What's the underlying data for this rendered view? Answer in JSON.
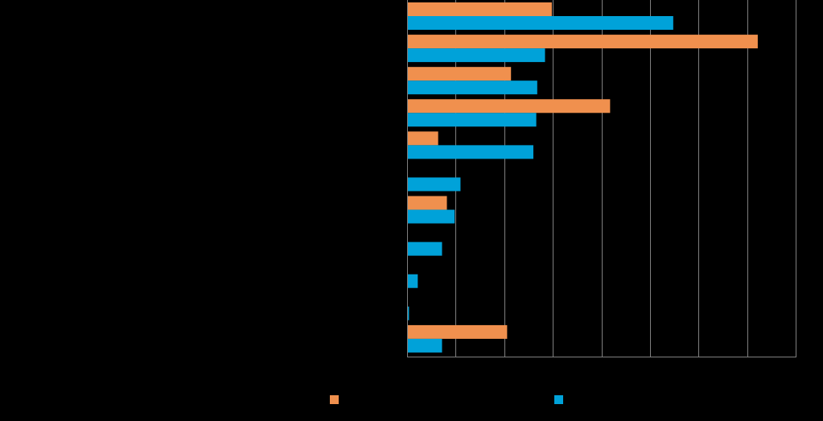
{
  "chart_data": {
    "type": "bar",
    "orientation": "horizontal",
    "categories": [
      "",
      "",
      "",
      "",
      "",
      "",
      "",
      "",
      "",
      "",
      ""
    ],
    "series": [
      {
        "name": "",
        "color": "#F0904E",
        "values": [
          14.9,
          36.1,
          10.7,
          20.9,
          3.2,
          0,
          4.1,
          0,
          0,
          0,
          10.3
        ]
      },
      {
        "name": "",
        "color": "#00A2D9",
        "values": [
          27.4,
          14.2,
          13.4,
          13.3,
          13.0,
          5.5,
          4.9,
          3.6,
          1.1,
          0.2,
          3.6
        ]
      }
    ],
    "xlim": [
      0,
      40
    ],
    "x_gridlines": [
      0,
      5,
      10,
      15,
      20,
      25,
      30,
      35,
      40
    ],
    "title": "",
    "xlabel": "",
    "ylabel": "",
    "legend_position": "bottom-center",
    "background": "#000000",
    "axis_color": "#7F7F7F"
  }
}
